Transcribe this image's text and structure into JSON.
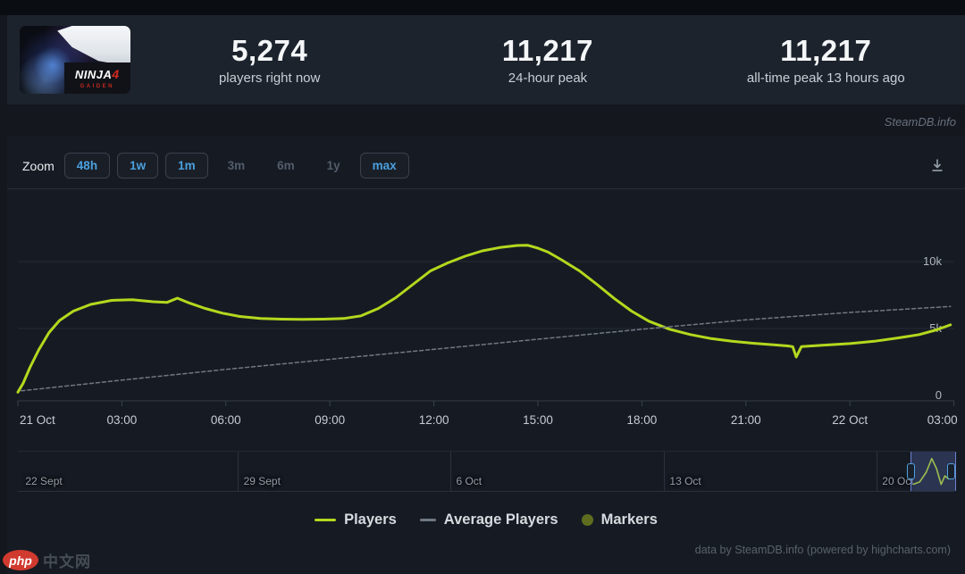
{
  "header": {
    "game_logo": {
      "line1": "NINJA",
      "accent": "4",
      "subtitle": "GAIDEN"
    },
    "stats": [
      {
        "value": "5,274",
        "label": "players right now"
      },
      {
        "value": "11,217",
        "label": "24-hour peak"
      },
      {
        "value": "11,217",
        "label": "all-time peak 13 hours ago"
      }
    ]
  },
  "attribution": {
    "site": "SteamDB.info",
    "credits": "data by SteamDB.info (powered by highcharts.com)"
  },
  "toolbar": {
    "zoom_label": "Zoom",
    "buttons": [
      {
        "label": "48h",
        "boxed": true,
        "enabled": true
      },
      {
        "label": "1w",
        "boxed": true,
        "enabled": true
      },
      {
        "label": "1m",
        "boxed": true,
        "enabled": true
      },
      {
        "label": "3m",
        "boxed": false,
        "enabled": false
      },
      {
        "label": "6m",
        "boxed": false,
        "enabled": false
      },
      {
        "label": "1y",
        "boxed": false,
        "enabled": false
      },
      {
        "label": "max",
        "boxed": true,
        "enabled": true
      }
    ]
  },
  "chart_data": {
    "type": "line",
    "title": "",
    "xlabel": "",
    "ylabel": "",
    "x_unit": "hours since 21 Oct 00:00",
    "ylim": [
      0,
      12500
    ],
    "grid": true,
    "legend_position": "bottom",
    "colors": {
      "players": "#b4d81d",
      "average": "#707883",
      "markers": "#5e6d1d",
      "accent_blue": "#4ba0df"
    },
    "yticks": [
      {
        "v": 0,
        "label": "0"
      },
      {
        "v": 5000,
        "label": "5k"
      },
      {
        "v": 10000,
        "label": "10k"
      }
    ],
    "xticks": [
      {
        "h": 0,
        "label": "21 Oct"
      },
      {
        "h": 3,
        "label": "03:00"
      },
      {
        "h": 6,
        "label": "06:00"
      },
      {
        "h": 9,
        "label": "09:00"
      },
      {
        "h": 12,
        "label": "12:00"
      },
      {
        "h": 15,
        "label": "15:00"
      },
      {
        "h": 18,
        "label": "18:00"
      },
      {
        "h": 21,
        "label": "21:00"
      },
      {
        "h": 24,
        "label": "22 Oct"
      },
      {
        "h": 27,
        "label": "03:00"
      }
    ],
    "series": [
      {
        "name": "Players",
        "color": "#b4d81d",
        "width": 3,
        "dash": false,
        "points": [
          [
            0,
            250
          ],
          [
            0.15,
            900
          ],
          [
            0.35,
            2100
          ],
          [
            0.6,
            3400
          ],
          [
            0.9,
            4700
          ],
          [
            1.2,
            5600
          ],
          [
            1.6,
            6300
          ],
          [
            2.1,
            6800
          ],
          [
            2.7,
            7100
          ],
          [
            3.3,
            7150
          ],
          [
            3.9,
            7000
          ],
          [
            4.3,
            6950
          ],
          [
            4.6,
            7270
          ],
          [
            4.9,
            6950
          ],
          [
            5.4,
            6500
          ],
          [
            5.9,
            6150
          ],
          [
            6.4,
            5900
          ],
          [
            7,
            5750
          ],
          [
            7.6,
            5700
          ],
          [
            8.2,
            5680
          ],
          [
            8.8,
            5700
          ],
          [
            9.4,
            5750
          ],
          [
            9.9,
            5950
          ],
          [
            10.4,
            6500
          ],
          [
            10.9,
            7300
          ],
          [
            11.4,
            8300
          ],
          [
            11.9,
            9300
          ],
          [
            12.4,
            9900
          ],
          [
            12.9,
            10400
          ],
          [
            13.4,
            10800
          ],
          [
            13.9,
            11050
          ],
          [
            14.4,
            11200
          ],
          [
            14.7,
            11217
          ],
          [
            15,
            11000
          ],
          [
            15.3,
            10700
          ],
          [
            15.7,
            10100
          ],
          [
            16.2,
            9300
          ],
          [
            16.7,
            8300
          ],
          [
            17.2,
            7250
          ],
          [
            17.7,
            6300
          ],
          [
            18.2,
            5550
          ],
          [
            18.8,
            4950
          ],
          [
            19.4,
            4550
          ],
          [
            20,
            4250
          ],
          [
            20.6,
            4050
          ],
          [
            21.2,
            3900
          ],
          [
            21.8,
            3780
          ],
          [
            22.2,
            3700
          ],
          [
            22.35,
            3650
          ],
          [
            22.45,
            2870
          ],
          [
            22.6,
            3650
          ],
          [
            23.2,
            3750
          ],
          [
            24,
            3870
          ],
          [
            24.7,
            4050
          ],
          [
            25.4,
            4300
          ],
          [
            26,
            4550
          ],
          [
            26.5,
            4900
          ],
          [
            26.9,
            5274
          ]
        ]
      },
      {
        "name": "Average Players",
        "color": "#707883",
        "width": 1.5,
        "dash": true,
        "points": [
          [
            0.1,
            350
          ],
          [
            3,
            1150
          ],
          [
            6,
            1950
          ],
          [
            9,
            2700
          ],
          [
            12,
            3450
          ],
          [
            15,
            4200
          ],
          [
            18,
            4950
          ],
          [
            21,
            5650
          ],
          [
            24,
            6200
          ],
          [
            26.9,
            6650
          ]
        ]
      }
    ],
    "legend": [
      {
        "label": "Players",
        "swatch": "line",
        "color": "#b4d81d"
      },
      {
        "label": "Average Players",
        "swatch": "line-thin",
        "color": "#707883"
      },
      {
        "label": "Markers",
        "swatch": "circle",
        "color": "#5e6d1d"
      }
    ],
    "navigator": {
      "gridlines": [
        0.235,
        0.462,
        0.69,
        0.917
      ],
      "labels": [
        {
          "f": 0.008,
          "text": "22 Sept"
        },
        {
          "f": 0.241,
          "text": "29 Sept"
        },
        {
          "f": 0.468,
          "text": "6 Oct"
        },
        {
          "f": 0.696,
          "text": "13 Oct"
        },
        {
          "f": 0.923,
          "text": "20 Oct"
        }
      ],
      "selection": {
        "from": 0.953,
        "to": 1.0
      },
      "spark": [
        [
          0.956,
          0.1
        ],
        [
          0.963,
          0.18
        ],
        [
          0.97,
          0.5
        ],
        [
          0.976,
          0.95
        ],
        [
          0.981,
          0.62
        ],
        [
          0.986,
          0.1
        ],
        [
          0.99,
          0.38
        ],
        [
          0.994,
          0.28
        ],
        [
          0.998,
          0.36
        ],
        [
          1.0,
          0.33
        ]
      ]
    }
  },
  "watermark": {
    "badge": "php",
    "text": "中文网"
  }
}
